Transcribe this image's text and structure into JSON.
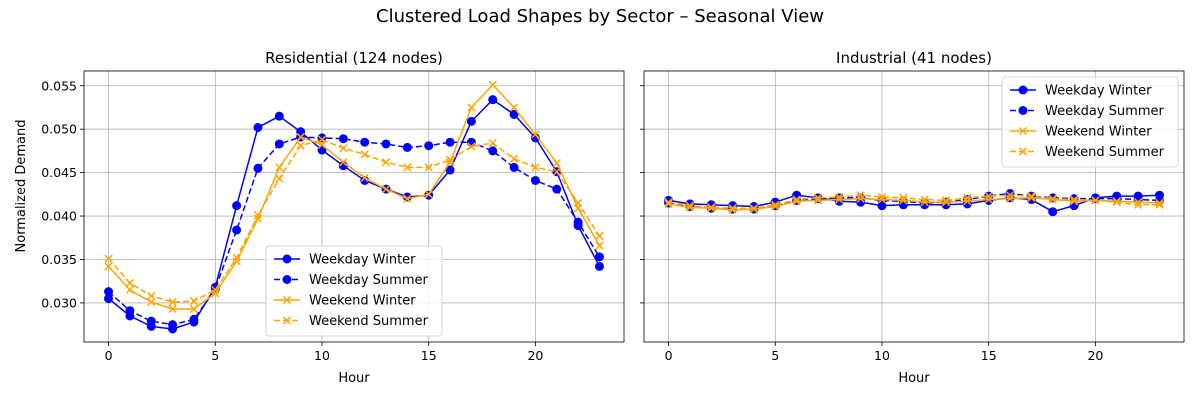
{
  "figure": {
    "title": "Clustered Load Shapes by Sector – Seasonal View",
    "ylabel": "Normalized Demand",
    "colors": {
      "weekday": "#0000ff",
      "weekend": "#ffa500"
    }
  },
  "chart_data": [
    {
      "type": "line",
      "title": "Residential (124 nodes)",
      "xlabel": "Hour",
      "ylabel": "Normalized Demand",
      "x": [
        0,
        1,
        2,
        3,
        4,
        5,
        6,
        7,
        8,
        9,
        10,
        11,
        12,
        13,
        14,
        15,
        16,
        17,
        18,
        19,
        20,
        21,
        22,
        23
      ],
      "xlim": [
        -1.15,
        24.15
      ],
      "ylim": [
        0.0255,
        0.0567
      ],
      "xticks": [
        0,
        5,
        10,
        15,
        20
      ],
      "yticks": [
        0.03,
        0.035,
        0.04,
        0.045,
        0.05,
        0.055
      ],
      "ytick_labels": [
        "0.030",
        "0.035",
        "0.040",
        "0.045",
        "0.050",
        "0.055"
      ],
      "grid": true,
      "legend_position": "lower-center",
      "series": [
        {
          "name": "Weekday Winter",
          "color": "#0000ff",
          "dash": "solid",
          "marker": "circle",
          "values": [
            0.0305,
            0.0285,
            0.0273,
            0.027,
            0.0278,
            0.0318,
            0.0412,
            0.0502,
            0.0515,
            0.0497,
            0.0476,
            0.0458,
            0.0441,
            0.0431,
            0.0422,
            0.0424,
            0.0453,
            0.0509,
            0.0534,
            0.0517,
            0.049,
            0.0451,
            0.0389,
            0.0342
          ]
        },
        {
          "name": "Weekday Summer",
          "color": "#0000ff",
          "dash": "dashed",
          "marker": "circle",
          "values": [
            0.0313,
            0.0291,
            0.0279,
            0.0275,
            0.0281,
            0.0316,
            0.0384,
            0.0455,
            0.0483,
            0.0491,
            0.049,
            0.0489,
            0.0485,
            0.0483,
            0.0479,
            0.0481,
            0.0485,
            0.0485,
            0.0475,
            0.0456,
            0.0441,
            0.0431,
            0.0393,
            0.0353
          ]
        },
        {
          "name": "Weekend Winter",
          "color": "#ffa500",
          "dash": "solid",
          "marker": "x",
          "values": [
            0.0342,
            0.0315,
            0.0301,
            0.0293,
            0.0293,
            0.0311,
            0.0348,
            0.0397,
            0.0456,
            0.0491,
            0.0482,
            0.0462,
            0.0444,
            0.0431,
            0.042,
            0.0425,
            0.0462,
            0.0525,
            0.0551,
            0.0525,
            0.0494,
            0.0461,
            0.0409,
            0.0366
          ]
        },
        {
          "name": "Weekend Summer",
          "color": "#ffa500",
          "dash": "dashed",
          "marker": "x",
          "values": [
            0.0351,
            0.0323,
            0.0308,
            0.0301,
            0.0302,
            0.0315,
            0.0352,
            0.0401,
            0.0443,
            0.0481,
            0.0488,
            0.0478,
            0.0471,
            0.0462,
            0.0456,
            0.0456,
            0.0465,
            0.048,
            0.0484,
            0.0466,
            0.0456,
            0.0451,
            0.0415,
            0.0377
          ]
        }
      ]
    },
    {
      "type": "line",
      "title": "Industrial (41 nodes)",
      "xlabel": "Hour",
      "ylabel": "",
      "x": [
        0,
        1,
        2,
        3,
        4,
        5,
        6,
        7,
        8,
        9,
        10,
        11,
        12,
        13,
        14,
        15,
        16,
        17,
        18,
        19,
        20,
        21,
        22,
        23
      ],
      "xlim": [
        -1.15,
        24.15
      ],
      "ylim": [
        0.0255,
        0.0567
      ],
      "xticks": [
        0,
        5,
        10,
        15,
        20
      ],
      "yticks": [
        0.03,
        0.035,
        0.04,
        0.045,
        0.05,
        0.055
      ],
      "ytick_labels": [],
      "grid": true,
      "legend_position": "upper-right",
      "series": [
        {
          "name": "Weekday Winter",
          "color": "#0000ff",
          "dash": "solid",
          "marker": "circle",
          "values": [
            0.0418,
            0.0414,
            0.0413,
            0.0412,
            0.0411,
            0.0416,
            0.0424,
            0.0421,
            0.0417,
            0.0416,
            0.0412,
            0.0413,
            0.0413,
            0.0413,
            0.0414,
            0.0418,
            0.0421,
            0.0419,
            0.0405,
            0.0412,
            0.0421,
            0.0423,
            0.0423,
            0.0424
          ]
        },
        {
          "name": "Weekday Summer",
          "color": "#0000ff",
          "dash": "dashed",
          "marker": "circle",
          "values": [
            0.0415,
            0.0411,
            0.0409,
            0.0408,
            0.0408,
            0.0412,
            0.0418,
            0.042,
            0.0421,
            0.0421,
            0.0418,
            0.0417,
            0.0415,
            0.0416,
            0.0419,
            0.0423,
            0.0426,
            0.0423,
            0.0421,
            0.042,
            0.042,
            0.042,
            0.0419,
            0.0418
          ]
        },
        {
          "name": "Weekend Winter",
          "color": "#ffa500",
          "dash": "solid",
          "marker": "x",
          "values": [
            0.0414,
            0.041,
            0.0409,
            0.0407,
            0.0408,
            0.0411,
            0.0417,
            0.0418,
            0.0419,
            0.042,
            0.0419,
            0.0418,
            0.0416,
            0.0416,
            0.0417,
            0.0419,
            0.042,
            0.0421,
            0.0419,
            0.0417,
            0.0418,
            0.0417,
            0.0416,
            0.0415
          ]
        },
        {
          "name": "Weekend Summer",
          "color": "#ffa500",
          "dash": "dashed",
          "marker": "x",
          "values": [
            0.0416,
            0.0412,
            0.041,
            0.0409,
            0.0409,
            0.0413,
            0.0419,
            0.0421,
            0.0422,
            0.0424,
            0.0422,
            0.0421,
            0.0419,
            0.0418,
            0.0421,
            0.0423,
            0.0424,
            0.0423,
            0.042,
            0.0419,
            0.0418,
            0.0416,
            0.0413,
            0.0413
          ]
        }
      ]
    }
  ]
}
